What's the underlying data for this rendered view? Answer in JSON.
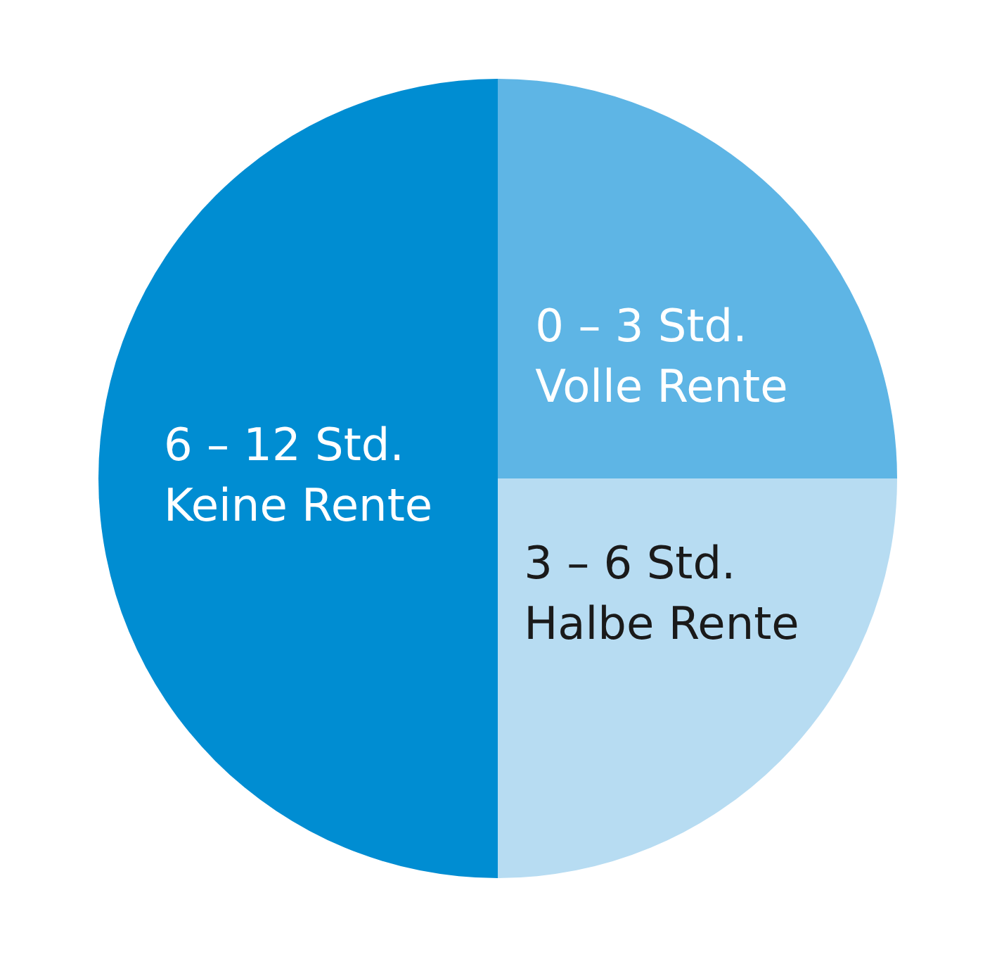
{
  "chart_data": {
    "type": "pie",
    "categories": [
      "0 – 3 Std.\nVolle Rente",
      "3 – 6 Std.\nHalbe Rente",
      "6 – 12 Std.\nKeine Rente"
    ],
    "values": [
      25,
      25,
      50
    ],
    "colors": [
      "#5eb5e5",
      "#b7dcf2",
      "#008dd2"
    ]
  }
}
